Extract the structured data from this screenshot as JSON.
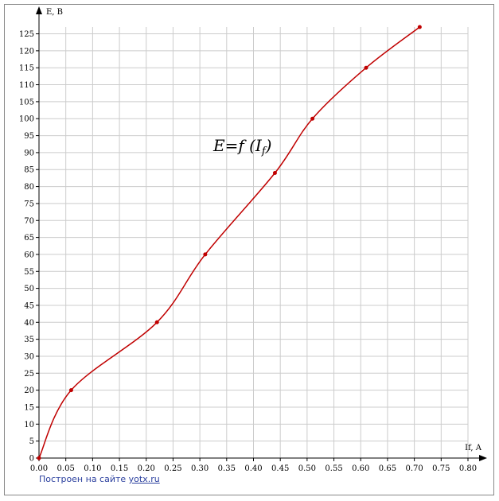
{
  "chart_data": {
    "type": "line",
    "x_label": "If, A",
    "y_label": "E, B",
    "annotation": [
      "E=f (I",
      "f",
      ")"
    ],
    "x": [
      0,
      0.06,
      0.22,
      0.31,
      0.44,
      0.51,
      0.61,
      0.71
    ],
    "series": [
      {
        "color": "#c00000",
        "values": [
          0,
          20,
          40,
          60,
          84,
          100,
          115,
          127
        ]
      }
    ],
    "xlim": [
      0,
      0.8
    ],
    "ylim": [
      0,
      127
    ],
    "xticks": [
      {
        "value": 0,
        "label": "0.00"
      },
      {
        "value": 0.05,
        "label": "0.05"
      },
      {
        "value": 0.1,
        "label": "0.10"
      },
      {
        "value": 0.15,
        "label": "0.15"
      },
      {
        "value": 0.2,
        "label": "0.20"
      },
      {
        "value": 0.25,
        "label": "0.25"
      },
      {
        "value": 0.3,
        "label": "0.30"
      },
      {
        "value": 0.35,
        "label": "0.35"
      },
      {
        "value": 0.4,
        "label": "0.40"
      },
      {
        "value": 0.45,
        "label": "0.45"
      },
      {
        "value": 0.5,
        "label": "0.50"
      },
      {
        "value": 0.55,
        "label": "0.55"
      },
      {
        "value": 0.6,
        "label": "0.60"
      },
      {
        "value": 0.65,
        "label": "0.65"
      },
      {
        "value": 0.7,
        "label": "0.70"
      },
      {
        "value": 0.75,
        "label": "0.75"
      },
      {
        "value": 0.8,
        "label": "0.80"
      }
    ],
    "yticks": [
      0,
      5,
      10,
      15,
      20,
      25,
      30,
      35,
      40,
      45,
      50,
      55,
      60,
      65,
      70,
      75,
      80,
      85,
      90,
      95,
      100,
      105,
      110,
      115,
      120,
      125
    ],
    "grid": true,
    "footer": {
      "text": "Построен на сайте",
      "link": "yotx.ru"
    }
  }
}
